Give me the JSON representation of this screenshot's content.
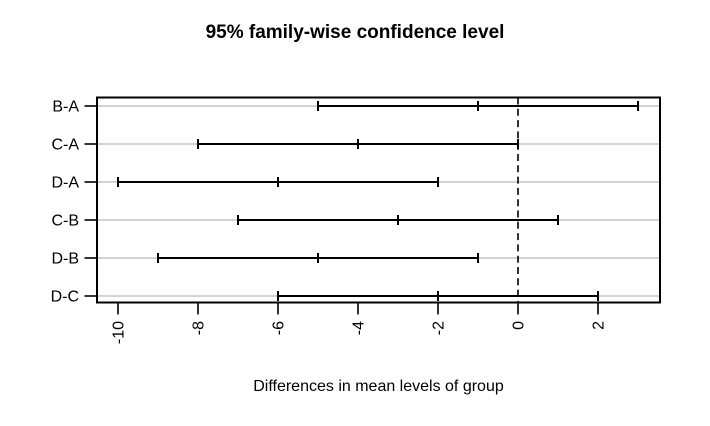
{
  "title": "95% family-wise confidence level",
  "x_axis_label": "Differences in mean levels of group",
  "colors": {
    "interval": "#000000",
    "grid_line": "#d3d3d3",
    "reference_line": "#000000",
    "axis": "#000000",
    "text": "#000000",
    "background": "#ffffff"
  },
  "chart_data": {
    "type": "scatter",
    "subtype": "horizontal-confidence-intervals",
    "title": "95% family-wise confidence level",
    "xlabel": "Differences in mean levels of group",
    "ylabel": "",
    "categories": [
      "B-A",
      "C-A",
      "D-A",
      "C-B",
      "D-B",
      "D-C"
    ],
    "intervals": [
      {
        "comparison": "B-A",
        "lower": -5,
        "center": -1,
        "upper": 3
      },
      {
        "comparison": "C-A",
        "lower": -8,
        "center": -4,
        "upper": 0
      },
      {
        "comparison": "D-A",
        "lower": -10,
        "center": -6,
        "upper": -2
      },
      {
        "comparison": "C-B",
        "lower": -7,
        "center": -3,
        "upper": 1
      },
      {
        "comparison": "D-B",
        "lower": -9,
        "center": -5,
        "upper": -1
      },
      {
        "comparison": "D-C",
        "lower": -6,
        "center": -2,
        "upper": 2
      }
    ],
    "x_ticks": [
      -10,
      -8,
      -6,
      -4,
      -2,
      0,
      2
    ],
    "x_tick_labels": [
      "-10",
      "-8",
      "-6",
      "-4",
      "-2",
      "0",
      "2"
    ],
    "xlim": [
      -10.5,
      3.5
    ],
    "reference_line_x": 0,
    "grid": "light gray horizontal guide line per comparison row",
    "legend": "none",
    "x_tick_label_rotation_deg": -90
  }
}
